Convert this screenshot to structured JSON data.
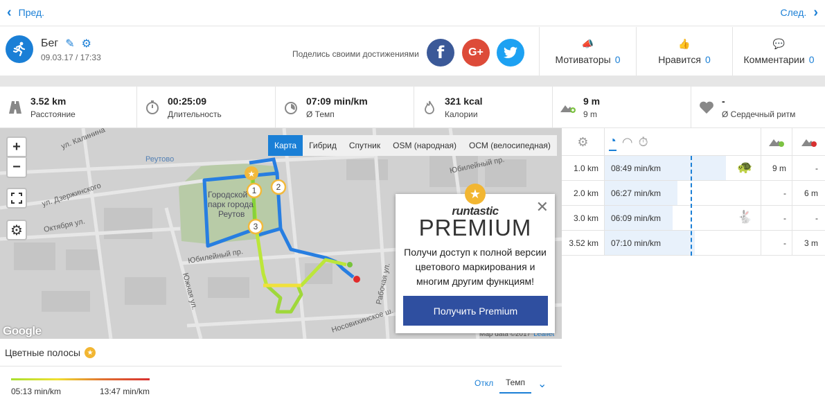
{
  "nav": {
    "prev_label": "Пред.",
    "next_label": "След."
  },
  "activity": {
    "title": "Бег",
    "datetime": "09.03.17 / 17:33",
    "icon": "running-icon"
  },
  "share": {
    "label": "Поделись своими достижениями",
    "facebook": "f",
    "google": "G+"
  },
  "counters": [
    {
      "label": "Мотиваторы",
      "count": "0",
      "icon": "megaphone-icon"
    },
    {
      "label": "Нравится",
      "count": "0",
      "icon": "thumbs-up-icon"
    },
    {
      "label": "Комментарии",
      "count": "0",
      "icon": "comment-icon"
    }
  ],
  "stats": [
    {
      "value": "3.52 km",
      "label": "Расстояние",
      "icon": "road-icon"
    },
    {
      "value": "00:25:09",
      "label": "Длительность",
      "icon": "stopwatch-icon"
    },
    {
      "value": "07:09 min/km",
      "label": "Ø Темп",
      "icon": "pace-icon"
    },
    {
      "value": "321 kcal",
      "label": "Калории",
      "icon": "flame-icon"
    },
    {
      "value": "9 m",
      "label": "9 m",
      "icon": "elevation-icon"
    },
    {
      "value": "-",
      "label": "Ø Сердечный ритм",
      "icon": "heart-icon"
    }
  ],
  "map": {
    "tabs": [
      "Карта",
      "Гибрид",
      "Спутник",
      "OSM (народная)",
      "ОСМ (велосипедная)"
    ],
    "active_tab": "Карта",
    "zoom_in": "+",
    "zoom_out": "−",
    "google": "Google",
    "attribution": "Map data ©2017",
    "leaflet": "Leaflet",
    "labels": {
      "kalinina": "ул. Калинина",
      "reutovo": "Реутово",
      "dzerzhinsky": "ул. Дзержинского",
      "oktyabrya": "Октября ул.",
      "park1": "Городской",
      "park2": "парк города",
      "park3": "Реутов",
      "yubileyny1": "Юбилейный пр.",
      "yubileyny2": "Юбилейный пр.",
      "yuzhnaya": "Южная ул.",
      "noso": "Носовихинское ш.",
      "rabochaya": "Рабочая ул."
    },
    "markers": [
      "1",
      "2",
      "3"
    ]
  },
  "premium": {
    "brand": "runtastic",
    "title": "PREMIUM",
    "description": "Получи доступ к полной версии цветового маркирования и многим другим функциям!",
    "button": "Получить Premium"
  },
  "color_bars": {
    "title": "Цветные полосы",
    "min": "05:13 min/km",
    "max": "13:47 min/km",
    "off_label": "Откл",
    "mode_label": "Темп"
  },
  "splits": [
    {
      "km": "1.0 km",
      "pace": "08:49 min/km",
      "up": "9 m",
      "down": "-",
      "animal": "turtle-icon",
      "fill": 0.78
    },
    {
      "km": "2.0 km",
      "pace": "06:27 min/km",
      "up": "-",
      "down": "6 m",
      "animal": "",
      "fill": 0.47
    },
    {
      "km": "3.0 km",
      "pace": "06:09 min/km",
      "up": "-",
      "down": "-",
      "animal": "rabbit-icon",
      "fill": 0.44
    },
    {
      "km": "3.52 km",
      "pace": "07:10 min/km",
      "up": "-",
      "down": "3 m",
      "animal": "",
      "fill": 0.58
    }
  ],
  "colors": {
    "accent": "#1a7fd6",
    "premium_button": "#2f4fa0",
    "star": "#f2b632"
  }
}
